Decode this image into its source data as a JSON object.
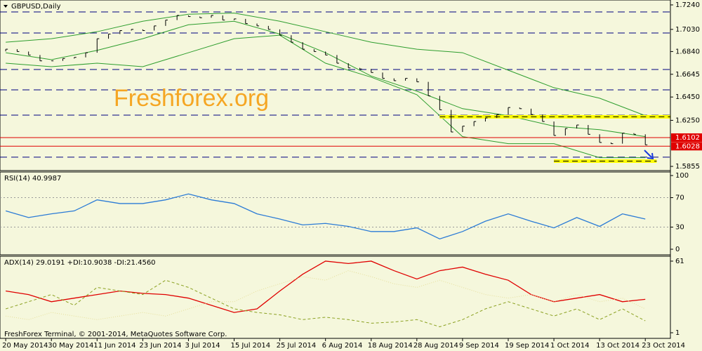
{
  "chart_data": [
    {
      "type": "ohlc",
      "title": "GBPUSD,Daily",
      "watermark": "Freshforex.org",
      "bar_color": "#000000",
      "closes": [
        1.686,
        1.684,
        1.681,
        1.676,
        1.676,
        1.678,
        1.679,
        1.683,
        1.695,
        1.699,
        1.702,
        1.703,
        1.702,
        1.706,
        1.711,
        1.715,
        1.714,
        1.713,
        1.715,
        1.711,
        1.712,
        1.708,
        1.706,
        1.703,
        1.698,
        1.692,
        1.686,
        1.684,
        1.681,
        1.674,
        1.67,
        1.669,
        1.666,
        1.661,
        1.659,
        1.661,
        1.658,
        1.646,
        1.634,
        1.615,
        1.62,
        1.624,
        1.627,
        1.63,
        1.636,
        1.635,
        1.63,
        1.624,
        1.612,
        1.618,
        1.621,
        1.613,
        1.606,
        1.605,
        1.614,
        1.613,
        1.604
      ],
      "bands": {
        "color": "#2e9e2e",
        "x": [
          0,
          4,
          8,
          12,
          16,
          20,
          24,
          28,
          32,
          36,
          40,
          44,
          48,
          52,
          56
        ],
        "upper": [
          1.692,
          1.695,
          1.701,
          1.71,
          1.716,
          1.717,
          1.71,
          1.701,
          1.692,
          1.686,
          1.683,
          1.668,
          1.653,
          1.644,
          1.629
        ],
        "middle": [
          1.683,
          1.677,
          1.685,
          1.695,
          1.707,
          1.71,
          1.699,
          1.683,
          1.663,
          1.65,
          1.635,
          1.629,
          1.62,
          1.617,
          1.611
        ],
        "lower": [
          1.674,
          1.671,
          1.674,
          1.671,
          1.683,
          1.695,
          1.698,
          1.674,
          1.662,
          1.647,
          1.611,
          1.605,
          1.605,
          1.593,
          1.593
        ]
      },
      "hlines": [
        1.718,
        1.6999,
        1.6686,
        1.6511,
        1.6295,
        1.5934
      ],
      "hline_color": "#000080",
      "levels": [
        {
          "value": 1.6102,
          "label": "1.6102"
        },
        {
          "value": 1.6028,
          "label": "1.6028"
        }
      ],
      "level_color": "#e00000",
      "zones": [
        {
          "value": 1.628,
          "from": 38,
          "to": 58.2
        },
        {
          "value": 1.59,
          "from": 48,
          "to": 57
        }
      ],
      "zone_color": "#ffff00",
      "xlim": [
        -0.5,
        58.2
      ],
      "ylim": [
        1.5819,
        1.7282
      ],
      "yticks": [
        {
          "value": 1.724,
          "label": "1.7240"
        },
        {
          "value": 1.703,
          "label": "1.7030"
        },
        {
          "value": 1.684,
          "label": "1.6840"
        },
        {
          "value": 1.6645,
          "label": "1.6645"
        },
        {
          "value": 1.645,
          "label": "1.6450"
        },
        {
          "value": 1.625,
          "label": "1.6250"
        },
        {
          "value": 1.5855,
          "label": "1.5855"
        }
      ],
      "xticks": [
        {
          "value": 0,
          "label": "20 May 2014"
        },
        {
          "value": 4,
          "label": "30 May 2014"
        },
        {
          "value": 8,
          "label": "11 Jun 2014"
        },
        {
          "value": 12,
          "label": "23 Jun 2014"
        },
        {
          "value": 16,
          "label": "3 Jul 2014"
        },
        {
          "value": 20,
          "label": "15 Jul 2014"
        },
        {
          "value": 24,
          "label": "25 Jul 2014"
        },
        {
          "value": 28,
          "label": "6 Aug 2014"
        },
        {
          "value": 32,
          "label": "18 Aug 2014"
        },
        {
          "value": 36,
          "label": "28 Aug 2014"
        },
        {
          "value": 40,
          "label": "9 Sep 2014"
        },
        {
          "value": 44,
          "label": "19 Sep 2014"
        },
        {
          "value": 48,
          "label": "1 Oct 2014"
        },
        {
          "value": 52,
          "label": "13 Oct 2014"
        },
        {
          "value": 56,
          "label": "23 Oct 2014"
        }
      ]
    },
    {
      "type": "line",
      "title": "RSI(14) 40.9987",
      "x": [
        0,
        2,
        4,
        6,
        8,
        10,
        12,
        14,
        16,
        18,
        20,
        22,
        24,
        26,
        28,
        30,
        32,
        34,
        36,
        38,
        40,
        42,
        44,
        46,
        48,
        50,
        52,
        54,
        56
      ],
      "series": [
        {
          "color": "#2b7bd6",
          "style": "solid",
          "values": [
            52,
            43,
            48,
            52,
            67,
            62,
            62,
            67,
            75,
            67,
            62,
            48,
            41,
            33,
            35,
            31,
            24,
            24,
            29,
            14,
            24,
            38,
            48,
            38,
            29,
            43,
            31,
            48,
            41
          ]
        }
      ],
      "hlines": [
        70,
        30
      ],
      "ylim": [
        -7.6,
        104.8
      ],
      "yticks": [
        100,
        70,
        30,
        0
      ]
    },
    {
      "type": "line",
      "title": "ADX(14) 29.0191 +DI:10.9038 -DI:21.4560",
      "footer": "FreshForex Terminal, © 2001-2014, MetaQuotes Software Corp.",
      "x": [
        0,
        2,
        4,
        6,
        8,
        10,
        12,
        14,
        16,
        18,
        20,
        22,
        24,
        26,
        28,
        30,
        32,
        34,
        36,
        38,
        40,
        42,
        44,
        46,
        48,
        50,
        52,
        54,
        56
      ],
      "series": [
        {
          "color": "#e00000",
          "style": "solid",
          "values": [
            36,
            33,
            27,
            30,
            33,
            36,
            34,
            33,
            30,
            24,
            18,
            21,
            36,
            50,
            61,
            59,
            61,
            53,
            46,
            53,
            56,
            50,
            45,
            33,
            27,
            30,
            33,
            27,
            29
          ]
        },
        {
          "color": "#8aa020",
          "style": "dashed",
          "values": [
            21,
            27,
            33,
            24,
            39,
            36,
            33,
            45,
            39,
            30,
            21,
            18,
            16,
            12,
            14,
            12,
            9,
            10,
            12,
            6,
            12,
            21,
            27,
            21,
            15,
            21,
            12,
            21,
            11
          ]
        },
        {
          "color": "#e6df9a",
          "style": "dotted",
          "values": [
            15,
            12,
            18,
            15,
            12,
            15,
            18,
            15,
            21,
            27,
            27,
            36,
            42,
            48,
            45,
            53,
            48,
            42,
            39,
            45,
            39,
            33,
            30,
            33,
            27,
            33,
            27,
            30,
            21
          ]
        }
      ],
      "ylim": [
        -3.7,
        65.1
      ],
      "yticks": [
        61,
        1
      ]
    }
  ]
}
